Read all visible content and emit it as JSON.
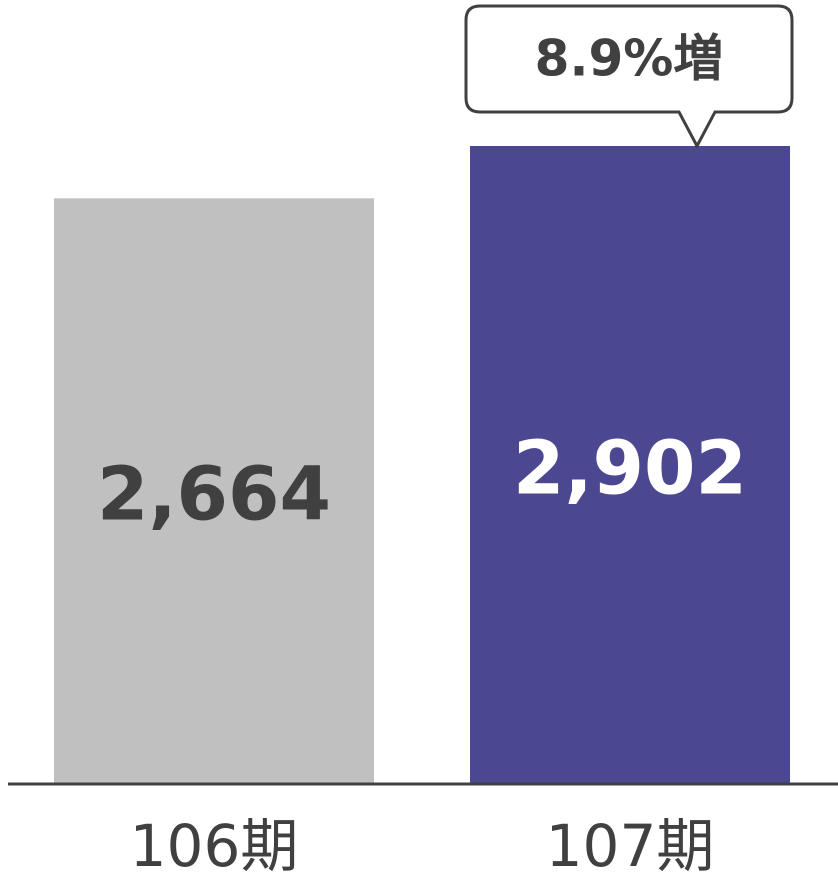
{
  "chart_data": {
    "type": "bar",
    "categories": [
      "106期",
      "107期"
    ],
    "values": [
      2664,
      2902
    ],
    "value_labels": [
      "2,664",
      "2,902"
    ],
    "colors": [
      "#c0c0c0",
      "#4b4891"
    ],
    "annotation": "8.9%増"
  }
}
